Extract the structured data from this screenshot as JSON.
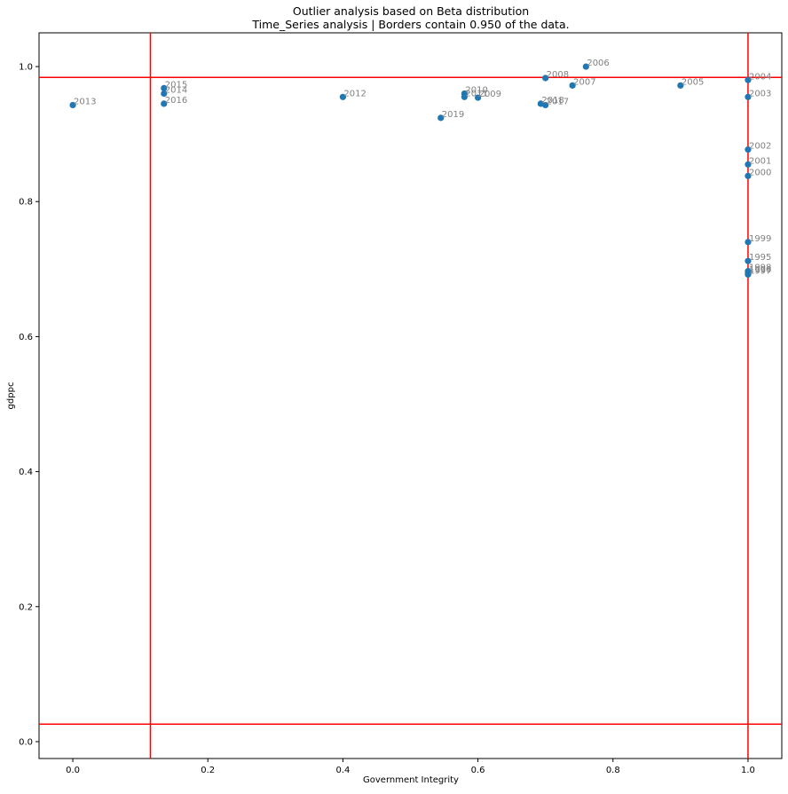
{
  "chart_data": {
    "type": "scatter",
    "title": "Outlier analysis based on Beta distribution",
    "subtitle": "Time_Series analysis | Borders contain 0.950 of the data.",
    "xlabel": "Government Integrity",
    "ylabel": "gdppc",
    "xlim": [
      -0.05,
      1.05
    ],
    "ylim": [
      -0.025,
      1.05
    ],
    "xticks": [
      "0.0",
      "0.2",
      "0.4",
      "0.6",
      "0.8",
      "1.0"
    ],
    "yticks": [
      "0.0",
      "0.2",
      "0.4",
      "0.6",
      "0.8",
      "1.0"
    ],
    "grid": false,
    "marker_color": "#1f77b4",
    "label_color": "#808080",
    "border_color": "#ff0000",
    "borders": {
      "x": [
        0.115,
        1.0
      ],
      "y": [
        0.026,
        0.984
      ]
    },
    "points": [
      {
        "label": "2013",
        "x": 0.0,
        "y": 0.943
      },
      {
        "label": "2015",
        "x": 0.135,
        "y": 0.968
      },
      {
        "label": "2014",
        "x": 0.135,
        "y": 0.96
      },
      {
        "label": "2016",
        "x": 0.135,
        "y": 0.945
      },
      {
        "label": "2012",
        "x": 0.4,
        "y": 0.955
      },
      {
        "label": "2019",
        "x": 0.545,
        "y": 0.924
      },
      {
        "label": "2010",
        "x": 0.58,
        "y": 0.96
      },
      {
        "label": "2011",
        "x": 0.58,
        "y": 0.955
      },
      {
        "label": "2009",
        "x": 0.6,
        "y": 0.954
      },
      {
        "label": "2018",
        "x": 0.693,
        "y": 0.945
      },
      {
        "label": "2017",
        "x": 0.7,
        "y": 0.943
      },
      {
        "label": "2008",
        "x": 0.7,
        "y": 0.983
      },
      {
        "label": "2007",
        "x": 0.74,
        "y": 0.972
      },
      {
        "label": "2006",
        "x": 0.76,
        "y": 1.0
      },
      {
        "label": "2005",
        "x": 0.9,
        "y": 0.972
      },
      {
        "label": "2004",
        "x": 1.0,
        "y": 0.98
      },
      {
        "label": "2003",
        "x": 1.0,
        "y": 0.955
      },
      {
        "label": "2002",
        "x": 1.0,
        "y": 0.877
      },
      {
        "label": "2001",
        "x": 1.0,
        "y": 0.855
      },
      {
        "label": "2000",
        "x": 1.0,
        "y": 0.838
      },
      {
        "label": "1999",
        "x": 1.0,
        "y": 0.74
      },
      {
        "label": "1995",
        "x": 1.0,
        "y": 0.712
      },
      {
        "label": "1998",
        "x": 1.0,
        "y": 0.697
      },
      {
        "label": "1996",
        "x": 1.0,
        "y": 0.694
      },
      {
        "label": "1997",
        "x": 1.0,
        "y": 0.692
      }
    ]
  }
}
